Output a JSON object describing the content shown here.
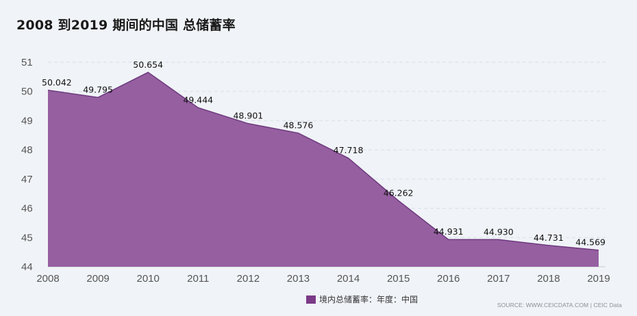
{
  "title": "2008 到2019 期间的中国 总储蓄率",
  "source": "SOURCE: WWW.CEICDATA.COM | CEIC Data",
  "colors": {
    "area_fill": "#955fa0",
    "area_stroke": "#6e3a7e",
    "legend_swatch": "#7b3a87",
    "grid": "#d9dfe8",
    "background": "#f0f3f7"
  },
  "chart_data": {
    "type": "area",
    "x": [
      "2008",
      "2009",
      "2010",
      "2011",
      "2012",
      "2013",
      "2014",
      "2015",
      "2016",
      "2017",
      "2018",
      "2019"
    ],
    "series": [
      {
        "name": "境内总储蓄率：年度：中国",
        "values": [
          50.042,
          49.795,
          50.654,
          49.444,
          48.901,
          48.576,
          47.718,
          46.262,
          44.931,
          44.93,
          44.731,
          44.569
        ],
        "labels": [
          "50.042",
          "49.795",
          "50.654",
          "49.444",
          "48.901",
          "48.576",
          "47.718",
          "46.262",
          "44.931",
          "44.930",
          "44.731",
          "44.569"
        ]
      }
    ],
    "ylim": [
      44,
      51
    ],
    "yticks": [
      "44",
      "45",
      "46",
      "47",
      "48",
      "49",
      "50",
      "51"
    ],
    "grid": true,
    "legend_position": "bottom-center"
  }
}
